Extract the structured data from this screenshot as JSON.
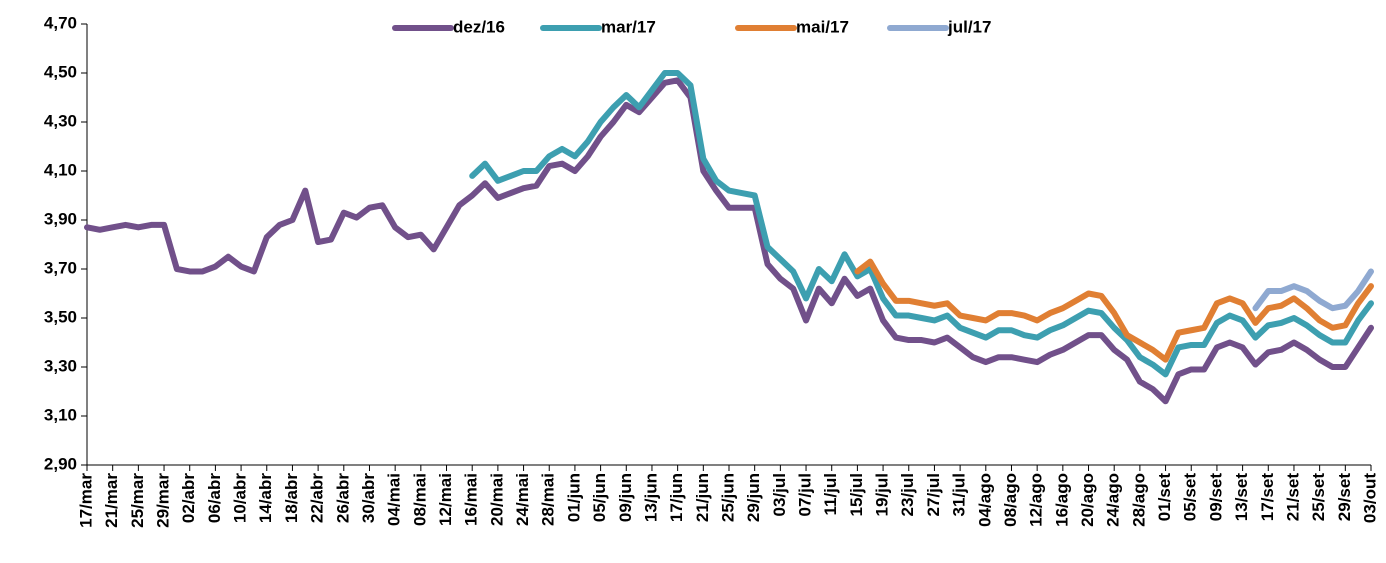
{
  "chart_data": {
    "type": "line",
    "categories": [
      "17/mar",
      null,
      "21/mar",
      null,
      "25/mar",
      null,
      "29/mar",
      null,
      "02/abr",
      null,
      "06/abr",
      null,
      "10/abr",
      null,
      "14/abr",
      null,
      "18/abr",
      null,
      "22/abr",
      null,
      "26/abr",
      null,
      "30/abr",
      null,
      "04/mai",
      null,
      "08/mai",
      null,
      "12/mai",
      null,
      "16/mai",
      null,
      "20/mai",
      null,
      "24/mai",
      null,
      "28/mai",
      null,
      "01/jun",
      null,
      "05/jun",
      null,
      "09/jun",
      null,
      "13/jun",
      null,
      "17/jun",
      null,
      "21/jun",
      null,
      "25/jun",
      null,
      "29/jun",
      null,
      "03/jul",
      null,
      "07/jul",
      null,
      "11/jul",
      null,
      "15/jul",
      null,
      "19/jul",
      null,
      "23/jul",
      null,
      "27/jul",
      null,
      "31/jul",
      null,
      "04/ago",
      null,
      "08/ago",
      null,
      "12/ago",
      null,
      "16/ago",
      null,
      "20/ago",
      null,
      "24/ago",
      null,
      "28/ago",
      null,
      "01/set",
      null,
      "05/set",
      null,
      "09/set",
      null,
      "13/set",
      null,
      "17/set",
      null,
      "21/set",
      null,
      "25/set",
      null,
      "29/set",
      null,
      "03/out"
    ],
    "series": [
      {
        "name": "dez/16",
        "color": "#71508a",
        "values": [
          3.87,
          3.86,
          3.87,
          3.88,
          3.87,
          3.88,
          3.88,
          3.7,
          3.69,
          3.69,
          3.71,
          3.75,
          3.71,
          3.69,
          3.83,
          3.88,
          3.9,
          4.02,
          3.81,
          3.82,
          3.93,
          3.91,
          3.95,
          3.96,
          3.87,
          3.83,
          3.84,
          3.78,
          3.87,
          3.96,
          4.0,
          4.05,
          3.99,
          4.01,
          4.03,
          4.04,
          4.12,
          4.13,
          4.1,
          4.16,
          4.24,
          4.3,
          4.37,
          4.34,
          4.4,
          4.46,
          4.47,
          4.4,
          4.1,
          4.02,
          3.95,
          3.95,
          3.95,
          3.72,
          3.66,
          3.62,
          3.49,
          3.62,
          3.56,
          3.66,
          3.59,
          3.62,
          3.49,
          3.42,
          3.41,
          3.41,
          3.4,
          3.42,
          3.38,
          3.34,
          3.32,
          3.34,
          3.34,
          3.33,
          3.32,
          3.35,
          3.37,
          3.4,
          3.43,
          3.43,
          3.37,
          3.33,
          3.24,
          3.21,
          3.16,
          3.27,
          3.29,
          3.29,
          3.38,
          3.4,
          3.38,
          3.31,
          3.36,
          3.37,
          3.4,
          3.37,
          3.33,
          3.3,
          3.3,
          3.38,
          3.46
        ]
      },
      {
        "name": "mar/17",
        "color": "#3d9fb0",
        "values": [
          null,
          null,
          null,
          null,
          null,
          null,
          null,
          null,
          null,
          null,
          null,
          null,
          null,
          null,
          null,
          null,
          null,
          null,
          null,
          null,
          null,
          null,
          null,
          null,
          null,
          null,
          null,
          null,
          null,
          null,
          4.08,
          4.13,
          4.06,
          4.08,
          4.1,
          4.1,
          4.16,
          4.19,
          4.16,
          4.22,
          4.3,
          4.36,
          4.41,
          4.36,
          4.43,
          4.5,
          4.5,
          4.45,
          4.15,
          4.06,
          4.02,
          4.01,
          4.0,
          3.79,
          3.74,
          3.69,
          3.58,
          3.7,
          3.65,
          3.76,
          3.67,
          3.7,
          3.58,
          3.51,
          3.51,
          3.5,
          3.49,
          3.51,
          3.46,
          3.44,
          3.42,
          3.45,
          3.45,
          3.43,
          3.42,
          3.45,
          3.47,
          3.5,
          3.53,
          3.52,
          3.46,
          3.41,
          3.34,
          3.31,
          3.27,
          3.38,
          3.39,
          3.39,
          3.48,
          3.51,
          3.49,
          3.42,
          3.47,
          3.48,
          3.5,
          3.47,
          3.43,
          3.4,
          3.4,
          3.49,
          3.56
        ]
      },
      {
        "name": "mai/17",
        "color": "#e07f33",
        "values": [
          null,
          null,
          null,
          null,
          null,
          null,
          null,
          null,
          null,
          null,
          null,
          null,
          null,
          null,
          null,
          null,
          null,
          null,
          null,
          null,
          null,
          null,
          null,
          null,
          null,
          null,
          null,
          null,
          null,
          null,
          null,
          null,
          null,
          null,
          null,
          null,
          null,
          null,
          null,
          null,
          null,
          null,
          null,
          null,
          null,
          null,
          null,
          null,
          null,
          null,
          null,
          null,
          null,
          null,
          null,
          null,
          null,
          null,
          null,
          null,
          3.69,
          3.73,
          3.64,
          3.57,
          3.57,
          3.56,
          3.55,
          3.56,
          3.51,
          3.5,
          3.49,
          3.52,
          3.52,
          3.51,
          3.49,
          3.52,
          3.54,
          3.57,
          3.6,
          3.59,
          3.52,
          3.43,
          3.4,
          3.37,
          3.33,
          3.44,
          3.45,
          3.46,
          3.56,
          3.58,
          3.56,
          3.48,
          3.54,
          3.55,
          3.58,
          3.54,
          3.49,
          3.46,
          3.47,
          3.56,
          3.63
        ]
      },
      {
        "name": "jul/17",
        "color": "#8fa9d1",
        "values": [
          null,
          null,
          null,
          null,
          null,
          null,
          null,
          null,
          null,
          null,
          null,
          null,
          null,
          null,
          null,
          null,
          null,
          null,
          null,
          null,
          null,
          null,
          null,
          null,
          null,
          null,
          null,
          null,
          null,
          null,
          null,
          null,
          null,
          null,
          null,
          null,
          null,
          null,
          null,
          null,
          null,
          null,
          null,
          null,
          null,
          null,
          null,
          null,
          null,
          null,
          null,
          null,
          null,
          null,
          null,
          null,
          null,
          null,
          null,
          null,
          null,
          null,
          null,
          null,
          null,
          null,
          null,
          null,
          null,
          null,
          null,
          null,
          null,
          null,
          null,
          null,
          null,
          null,
          null,
          null,
          null,
          null,
          null,
          null,
          null,
          null,
          null,
          null,
          null,
          null,
          null,
          3.54,
          3.61,
          3.61,
          3.63,
          3.61,
          3.57,
          3.54,
          3.55,
          3.61,
          3.69
        ]
      }
    ],
    "ylim": [
      2.9,
      4.7
    ],
    "yticks": [
      {
        "value": 2.9,
        "label": "2,90"
      },
      {
        "value": 3.1,
        "label": "3,10"
      },
      {
        "value": 3.3,
        "label": "3,30"
      },
      {
        "value": 3.5,
        "label": "3,50"
      },
      {
        "value": 3.7,
        "label": "3,70"
      },
      {
        "value": 3.9,
        "label": "3,90"
      },
      {
        "value": 4.1,
        "label": "4,10"
      },
      {
        "value": 4.3,
        "label": "4,30"
      },
      {
        "value": 4.5,
        "label": "4,50"
      },
      {
        "value": 4.7,
        "label": "4,70"
      }
    ],
    "grid": false,
    "legend": "top"
  }
}
